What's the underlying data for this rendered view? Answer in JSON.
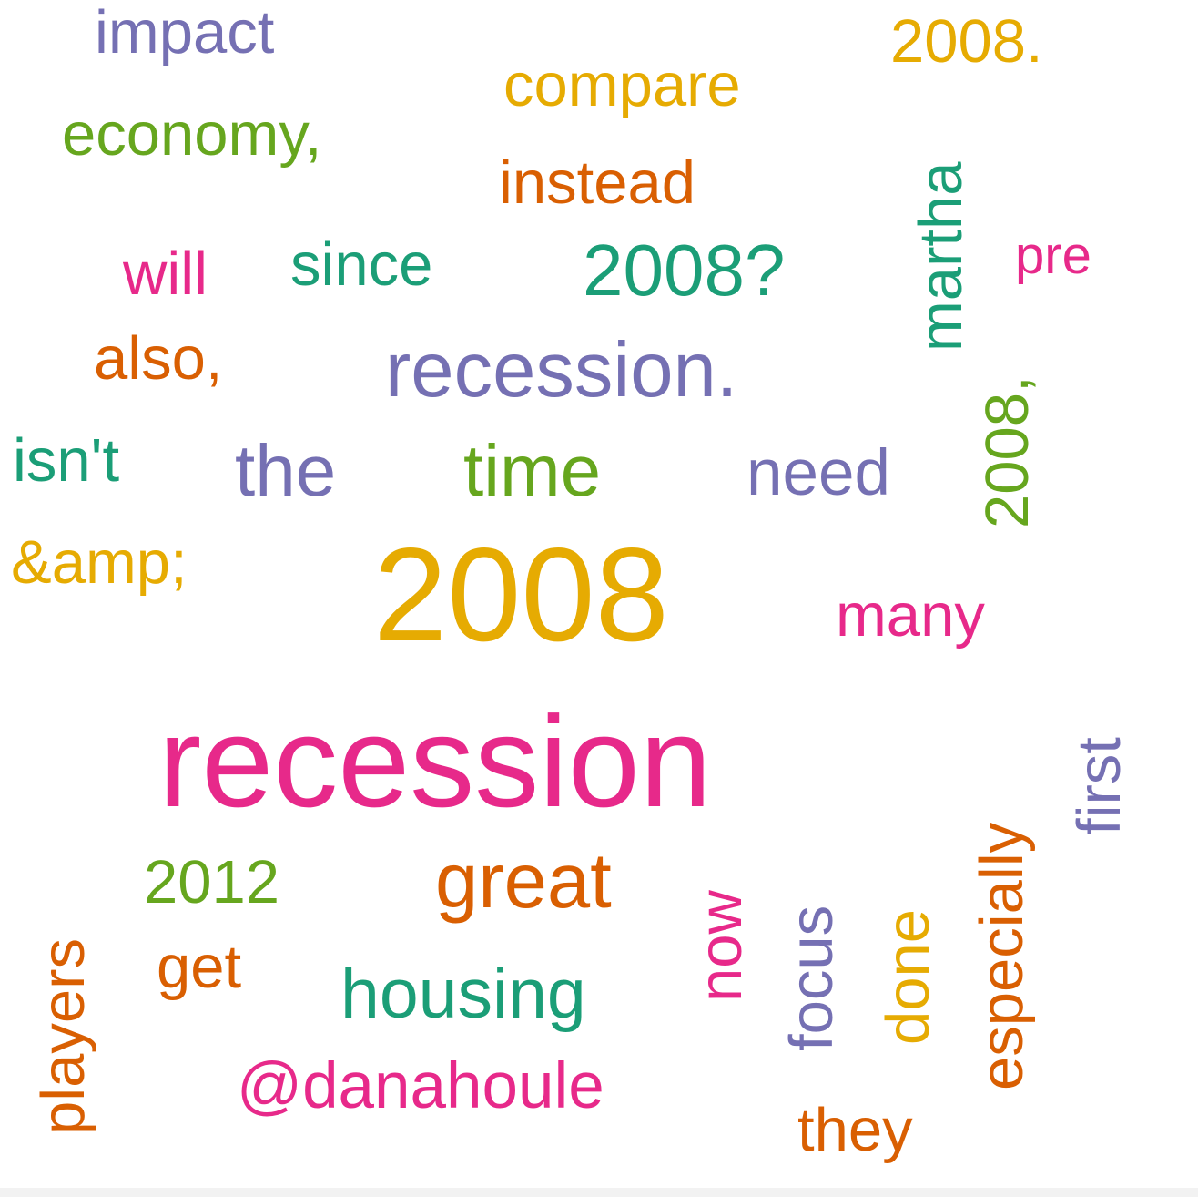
{
  "palette": {
    "purple": "#7570b3",
    "orange": "#d95f02",
    "gold": "#e6ab02",
    "green": "#66a61e",
    "teal": "#1b9e77",
    "pink": "#e7298a"
  },
  "words": [
    {
      "text": "impact",
      "color": "purple"
    },
    {
      "text": "2008.",
      "color": "gold"
    },
    {
      "text": "compare",
      "color": "gold"
    },
    {
      "text": "economy,",
      "color": "green"
    },
    {
      "text": "instead",
      "color": "orange"
    },
    {
      "text": "martha",
      "color": "teal"
    },
    {
      "text": "will",
      "color": "pink"
    },
    {
      "text": "since",
      "color": "teal"
    },
    {
      "text": "2008?",
      "color": "teal"
    },
    {
      "text": "pre",
      "color": "pink"
    },
    {
      "text": "also,",
      "color": "orange"
    },
    {
      "text": "recession.",
      "color": "purple"
    },
    {
      "text": "2008,",
      "color": "green"
    },
    {
      "text": "isn't",
      "color": "teal"
    },
    {
      "text": "the",
      "color": "purple"
    },
    {
      "text": "time",
      "color": "green"
    },
    {
      "text": "need",
      "color": "purple"
    },
    {
      "text": "&amp;",
      "color": "gold"
    },
    {
      "text": "2008",
      "color": "gold"
    },
    {
      "text": "many",
      "color": "pink"
    },
    {
      "text": "recession",
      "color": "pink"
    },
    {
      "text": "first",
      "color": "purple"
    },
    {
      "text": "2012",
      "color": "green"
    },
    {
      "text": "great",
      "color": "orange"
    },
    {
      "text": "now",
      "color": "pink"
    },
    {
      "text": "focus",
      "color": "purple"
    },
    {
      "text": "done",
      "color": "gold"
    },
    {
      "text": "especially",
      "color": "orange"
    },
    {
      "text": "players",
      "color": "orange"
    },
    {
      "text": "get",
      "color": "orange"
    },
    {
      "text": "housing",
      "color": "teal"
    },
    {
      "text": "@danahoule",
      "color": "pink"
    },
    {
      "text": "they",
      "color": "orange"
    }
  ]
}
